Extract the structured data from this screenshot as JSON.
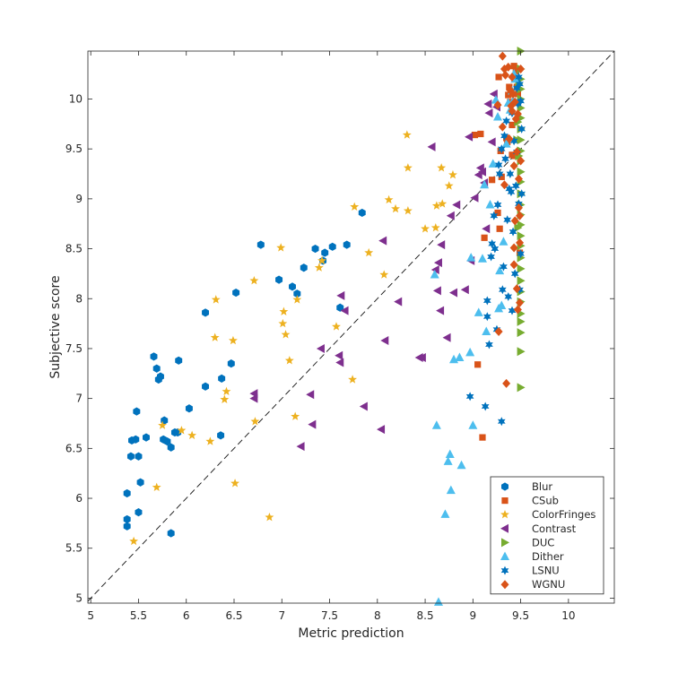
{
  "chart_data": {
    "type": "scatter",
    "title": "",
    "xlabel": "Metric prediction",
    "ylabel": "Subjective score",
    "xlim": [
      4.97,
      10.48
    ],
    "ylim": [
      4.95,
      10.48
    ],
    "xticks": [
      "5",
      "5.5",
      "6",
      "6.5",
      "7",
      "7.5",
      "8",
      "8.5",
      "9",
      "9.5",
      "10"
    ],
    "yticks": [
      "5",
      "5.5",
      "6",
      "6.5",
      "7",
      "7.5",
      "8",
      "8.5",
      "9",
      "9.5",
      "10"
    ],
    "grid": false,
    "legend_position": "bottom-right",
    "reference_line": "y = x (dashed)",
    "series": [
      {
        "name": "Blur",
        "marker": "hexagon",
        "color": "#0072BD",
        "points": [
          [
            5.38,
            5.72
          ],
          [
            5.38,
            5.79
          ],
          [
            5.38,
            6.05
          ],
          [
            5.42,
            6.42
          ],
          [
            5.43,
            6.58
          ],
          [
            5.47,
            6.59
          ],
          [
            5.48,
            6.87
          ],
          [
            5.5,
            5.86
          ],
          [
            5.5,
            6.42
          ],
          [
            5.52,
            6.16
          ],
          [
            5.58,
            6.61
          ],
          [
            5.66,
            7.42
          ],
          [
            5.69,
            7.3
          ],
          [
            5.71,
            7.19
          ],
          [
            5.73,
            7.22
          ],
          [
            5.76,
            6.59
          ],
          [
            5.77,
            6.78
          ],
          [
            5.8,
            6.57
          ],
          [
            5.84,
            6.51
          ],
          [
            5.84,
            5.65
          ],
          [
            5.88,
            6.66
          ],
          [
            5.91,
            6.66
          ],
          [
            5.92,
            7.38
          ],
          [
            6.03,
            6.9
          ],
          [
            6.2,
            7.86
          ],
          [
            6.2,
            7.12
          ],
          [
            6.36,
            6.63
          ],
          [
            6.37,
            7.2
          ],
          [
            6.47,
            7.35
          ],
          [
            6.52,
            8.06
          ],
          [
            6.78,
            8.54
          ],
          [
            6.97,
            8.19
          ],
          [
            7.11,
            8.12
          ],
          [
            7.16,
            8.05
          ],
          [
            7.23,
            8.31
          ],
          [
            7.35,
            8.5
          ],
          [
            7.43,
            8.38
          ],
          [
            7.45,
            8.46
          ],
          [
            7.53,
            8.52
          ],
          [
            7.61,
            7.91
          ],
          [
            7.68,
            8.54
          ],
          [
            7.84,
            8.86
          ]
        ]
      },
      {
        "name": "CSub",
        "marker": "square",
        "color": "#D95319",
        "points": [
          [
            9.05,
            7.34
          ],
          [
            9.1,
            6.61
          ],
          [
            9.12,
            8.61
          ],
          [
            9.02,
            9.64
          ],
          [
            9.08,
            9.65
          ],
          [
            9.2,
            9.19
          ],
          [
            9.26,
            8.86
          ],
          [
            9.28,
            8.7
          ],
          [
            9.29,
            9.48
          ],
          [
            9.3,
            9.22
          ],
          [
            9.35,
            9.61
          ],
          [
            9.37,
            10.04
          ],
          [
            9.39,
            9.97
          ],
          [
            9.41,
            9.74
          ],
          [
            9.43,
            10.33
          ],
          [
            9.45,
            10.28
          ],
          [
            9.46,
            10.12
          ],
          [
            9.47,
            10.05
          ],
          [
            9.49,
            8.46
          ],
          [
            9.36,
            9.57
          ],
          [
            9.41,
            9.44
          ],
          [
            9.44,
            9.43
          ],
          [
            9.38,
            10.12
          ],
          [
            9.27,
            10.22
          ]
        ]
      },
      {
        "name": "ColorFringes",
        "marker": "star",
        "color": "#EDB120",
        "points": [
          [
            5.45,
            5.57
          ],
          [
            5.69,
            6.11
          ],
          [
            5.75,
            6.73
          ],
          [
            5.95,
            6.68
          ],
          [
            6.06,
            6.63
          ],
          [
            6.25,
            6.57
          ],
          [
            6.3,
            7.61
          ],
          [
            6.31,
            7.99
          ],
          [
            6.42,
            7.07
          ],
          [
            6.4,
            6.99
          ],
          [
            6.49,
            7.58
          ],
          [
            6.51,
            6.15
          ],
          [
            6.71,
            8.18
          ],
          [
            6.72,
            6.77
          ],
          [
            6.87,
            5.81
          ],
          [
            6.99,
            8.51
          ],
          [
            7.01,
            7.75
          ],
          [
            7.02,
            7.87
          ],
          [
            7.04,
            7.64
          ],
          [
            7.08,
            7.38
          ],
          [
            7.14,
            6.82
          ],
          [
            7.16,
            7.99
          ],
          [
            7.39,
            8.31
          ],
          [
            7.42,
            8.38
          ],
          [
            7.57,
            7.72
          ],
          [
            7.74,
            7.19
          ],
          [
            7.76,
            8.92
          ],
          [
            7.91,
            8.46
          ],
          [
            8.07,
            8.24
          ],
          [
            8.12,
            8.99
          ],
          [
            8.19,
            8.9
          ],
          [
            8.31,
            9.64
          ],
          [
            8.32,
            9.31
          ],
          [
            8.32,
            8.88
          ],
          [
            8.5,
            8.7
          ],
          [
            8.61,
            8.71
          ],
          [
            8.62,
            8.93
          ],
          [
            8.67,
            9.31
          ],
          [
            8.68,
            8.95
          ],
          [
            8.75,
            9.13
          ],
          [
            8.79,
            9.24
          ]
        ]
      },
      {
        "name": "Contrast",
        "marker": "triangle-left",
        "color": "#7E2F8E",
        "points": [
          [
            6.71,
            7.05
          ],
          [
            6.71,
            7.0
          ],
          [
            7.2,
            6.52
          ],
          [
            7.3,
            7.04
          ],
          [
            7.32,
            6.74
          ],
          [
            7.41,
            7.5
          ],
          [
            7.6,
            7.43
          ],
          [
            7.61,
            7.36
          ],
          [
            7.62,
            8.03
          ],
          [
            7.66,
            7.88
          ],
          [
            7.86,
            6.92
          ],
          [
            8.04,
            6.69
          ],
          [
            8.06,
            8.58
          ],
          [
            8.08,
            7.58
          ],
          [
            8.22,
            7.97
          ],
          [
            8.44,
            7.41
          ],
          [
            8.47,
            7.41
          ],
          [
            8.57,
            9.52
          ],
          [
            8.61,
            8.29
          ],
          [
            8.63,
            8.08
          ],
          [
            8.64,
            8.36
          ],
          [
            8.66,
            7.88
          ],
          [
            8.67,
            8.54
          ],
          [
            8.73,
            7.61
          ],
          [
            8.77,
            8.83
          ],
          [
            8.8,
            8.06
          ],
          [
            8.83,
            8.94
          ],
          [
            8.92,
            8.09
          ],
          [
            8.96,
            9.62
          ],
          [
            8.98,
            8.38
          ],
          [
            9.02,
            9.01
          ],
          [
            9.06,
            9.24
          ],
          [
            9.08,
            9.31
          ],
          [
            9.1,
            9.27
          ],
          [
            9.12,
            9.16
          ],
          [
            9.14,
            8.7
          ],
          [
            9.16,
            9.95
          ],
          [
            9.17,
            9.86
          ],
          [
            9.2,
            9.57
          ],
          [
            9.22,
            10.05
          ],
          [
            9.25,
            9.92
          ]
        ]
      },
      {
        "name": "DUC",
        "marker": "triangle-right",
        "color": "#77AC30",
        "points": [
          [
            9.5,
            10.48
          ],
          [
            9.5,
            10.3
          ],
          [
            9.5,
            10.2
          ],
          [
            9.5,
            10.1
          ],
          [
            9.5,
            10.0
          ],
          [
            9.5,
            9.91
          ],
          [
            9.5,
            9.81
          ],
          [
            9.5,
            9.7
          ],
          [
            9.5,
            9.59
          ],
          [
            9.5,
            9.48
          ],
          [
            9.5,
            9.38
          ],
          [
            9.5,
            9.27
          ],
          [
            9.5,
            9.17
          ],
          [
            9.5,
            9.05
          ],
          [
            9.5,
            8.94
          ],
          [
            9.5,
            8.84
          ],
          [
            9.5,
            8.74
          ],
          [
            9.5,
            8.63
          ],
          [
            9.5,
            8.53
          ],
          [
            9.5,
            8.41
          ],
          [
            9.5,
            8.3
          ],
          [
            9.5,
            8.18
          ],
          [
            9.5,
            8.07
          ],
          [
            9.5,
            7.97
          ],
          [
            9.5,
            7.85
          ],
          [
            9.5,
            7.77
          ],
          [
            9.5,
            7.66
          ],
          [
            9.5,
            7.47
          ],
          [
            9.5,
            7.11
          ],
          [
            9.48,
            9.43
          ],
          [
            9.47,
            8.71
          ],
          [
            9.46,
            9.59
          ],
          [
            9.48,
            10.15
          ],
          [
            9.47,
            9.77
          ]
        ]
      },
      {
        "name": "Dither",
        "marker": "triangle-up",
        "color": "#4DBEEE",
        "points": [
          [
            8.6,
            8.24
          ],
          [
            8.62,
            6.73
          ],
          [
            8.64,
            4.96
          ],
          [
            8.71,
            5.84
          ],
          [
            8.74,
            6.37
          ],
          [
            8.76,
            6.44
          ],
          [
            8.77,
            6.08
          ],
          [
            8.8,
            7.39
          ],
          [
            8.86,
            7.41
          ],
          [
            8.88,
            6.33
          ],
          [
            8.97,
            7.46
          ],
          [
            8.98,
            8.41
          ],
          [
            9.0,
            6.73
          ],
          [
            9.06,
            7.86
          ],
          [
            9.1,
            8.4
          ],
          [
            9.12,
            9.14
          ],
          [
            9.14,
            7.67
          ],
          [
            9.18,
            8.94
          ],
          [
            9.21,
            9.35
          ],
          [
            9.24,
            9.99
          ],
          [
            9.26,
            9.82
          ],
          [
            9.27,
            7.9
          ],
          [
            9.28,
            8.28
          ],
          [
            9.3,
            7.93
          ],
          [
            9.32,
            8.57
          ],
          [
            9.35,
            9.55
          ],
          [
            9.37,
            9.96
          ],
          [
            9.39,
            9.89
          ],
          [
            9.41,
            10.08
          ],
          [
            9.42,
            9.98
          ],
          [
            9.43,
            10.25
          ],
          [
            9.44,
            10.2
          ]
        ]
      },
      {
        "name": "LSNU",
        "marker": "hexagram",
        "color": "#0072BD",
        "points": [
          [
            8.97,
            7.02
          ],
          [
            9.13,
            6.92
          ],
          [
            9.15,
            7.82
          ],
          [
            9.15,
            7.98
          ],
          [
            9.17,
            7.54
          ],
          [
            9.19,
            8.42
          ],
          [
            9.2,
            8.55
          ],
          [
            9.22,
            8.83
          ],
          [
            9.23,
            8.5
          ],
          [
            9.25,
            7.69
          ],
          [
            9.26,
            8.94
          ],
          [
            9.27,
            9.34
          ],
          [
            9.28,
            9.25
          ],
          [
            9.3,
            6.77
          ],
          [
            9.3,
            9.5
          ],
          [
            9.31,
            8.09
          ],
          [
            9.33,
            9.63
          ],
          [
            9.34,
            9.4
          ],
          [
            9.35,
            9.78
          ],
          [
            9.36,
            8.79
          ],
          [
            9.37,
            8.02
          ],
          [
            9.38,
            9.1
          ],
          [
            9.39,
            9.25
          ],
          [
            9.4,
            9.07
          ],
          [
            9.41,
            9.86
          ],
          [
            9.42,
            8.67
          ],
          [
            9.43,
            9.58
          ],
          [
            9.44,
            8.25
          ],
          [
            9.45,
            9.13
          ],
          [
            9.46,
            9.47
          ],
          [
            9.46,
            10.11
          ],
          [
            9.47,
            9.95
          ],
          [
            9.48,
            8.95
          ],
          [
            9.48,
            10.22
          ],
          [
            9.49,
            8.09
          ],
          [
            9.49,
            10.15
          ],
          [
            9.5,
            8.45
          ],
          [
            9.5,
            9.98
          ],
          [
            9.51,
            9.7
          ],
          [
            9.51,
            9.05
          ],
          [
            9.41,
            7.88
          ],
          [
            9.32,
            8.32
          ]
        ]
      },
      {
        "name": "WGNU",
        "marker": "diamond",
        "color": "#D95319",
        "points": [
          [
            9.27,
            7.67
          ],
          [
            9.31,
            9.72
          ],
          [
            9.31,
            10.43
          ],
          [
            9.33,
            10.3
          ],
          [
            9.34,
            10.24
          ],
          [
            9.35,
            7.15
          ],
          [
            9.37,
            10.32
          ],
          [
            9.38,
            9.6
          ],
          [
            9.39,
            10.09
          ],
          [
            9.4,
            9.93
          ],
          [
            9.41,
            10.22
          ],
          [
            9.42,
            10.05
          ],
          [
            9.43,
            9.33
          ],
          [
            9.43,
            8.51
          ],
          [
            9.44,
            9.97
          ],
          [
            9.44,
            8.78
          ],
          [
            9.45,
            9.8
          ],
          [
            9.46,
            9.47
          ],
          [
            9.46,
            8.1
          ],
          [
            9.47,
            9.85
          ],
          [
            9.47,
            7.89
          ],
          [
            9.48,
            9.2
          ],
          [
            9.48,
            8.91
          ],
          [
            9.49,
            8.83
          ],
          [
            9.49,
            7.96
          ],
          [
            9.49,
            8.56
          ],
          [
            9.5,
            10.3
          ],
          [
            9.5,
            9.38
          ],
          [
            9.43,
            8.34
          ],
          [
            9.26,
            9.94
          ],
          [
            9.33,
            9.14
          ],
          [
            9.41,
            9.88
          ]
        ]
      }
    ]
  }
}
